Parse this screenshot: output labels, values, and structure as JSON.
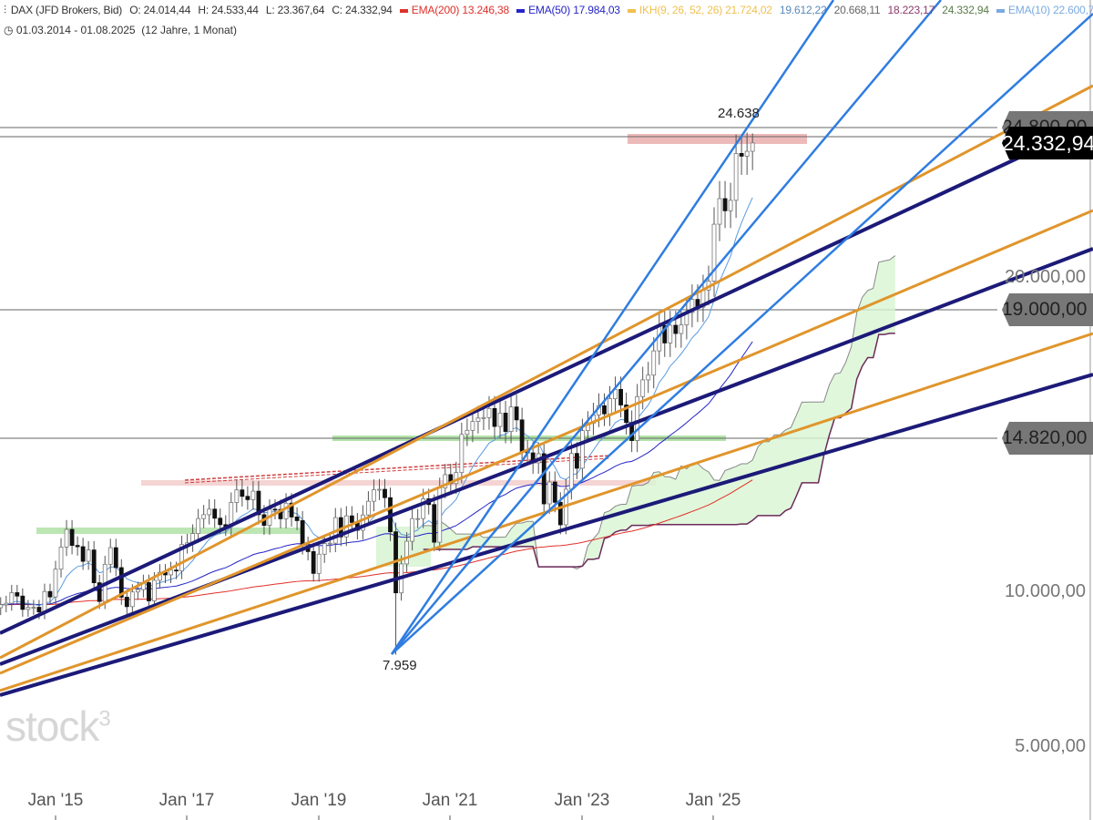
{
  "header": {
    "symbol": "DAX (JFD Brokers, Bid)",
    "open": "O: 24.014,44",
    "high": "H: 24.533,44",
    "low": "L: 23.367,64",
    "close": "C: 24.332,94",
    "ema200_label": "EMA(200)",
    "ema200_value": "13.246,38",
    "ema50_label": "EMA(50)",
    "ema50_value": "17.984,03",
    "ikh_label": "IKH(9, 26, 52, 26)",
    "ikh_v1": "21.724,02",
    "ikh_v2": "19.612,22",
    "ikh_v3": "20.668,11",
    "ikh_v4": "18.223,17",
    "ikh_v5": "24.332,94",
    "ema10_label": "EMA(10)",
    "ema10_value": "22.600,78",
    "range": "01.03.2014 - 01.08.2025",
    "range_note": "(12 Jahre, 1 Monat)"
  },
  "colors": {
    "ema200": "#e0302a",
    "ema50": "#2525c8",
    "ikh": "#f0c050",
    "ema10": "#5a9be0",
    "trend_navy": "#1c1a78",
    "trend_orange": "#e0952b",
    "trend_blue": "#2f7de1",
    "cloud": "#d8f5d2",
    "spanB": "#6b2a5a",
    "spanA": "#888888"
  },
  "logo": "stock3",
  "annotations": {
    "high": "24.638",
    "low": "7.959"
  },
  "price_tags": {
    "hidden": "24.800,00",
    "last": "24.332,94",
    "level1": "19.000,00",
    "level2": "14.820,00"
  },
  "chart_data": {
    "type": "candlestick",
    "interval": "1 Monat",
    "start": "2014-03",
    "y_scale": "linear",
    "ylim": [
      4400,
      27000
    ],
    "yticks": [
      "5.000,00",
      "10.000,00",
      "20.000,00"
    ],
    "xticks": [
      "Jan '15",
      "Jan '17",
      "Jan '19",
      "Jan '21",
      "Jan '23",
      "Jan '25"
    ],
    "high": 24638,
    "low": 7959,
    "horizontal_levels": [
      24800,
      24332.94,
      19000,
      14820
    ],
    "closes": [
      9556,
      9603,
      9943,
      9833,
      9407,
      9470,
      9474,
      9326,
      9980,
      9805,
      10694,
      11401,
      11966,
      11454,
      11413,
      10945,
      11308,
      10259,
      9660,
      10850,
      11382,
      10743,
      9798,
      9495,
      9965,
      10039,
      10263,
      9680,
      10337,
      10593,
      10511,
      10665,
      10640,
      11481,
      11535,
      11834,
      12313,
      12438,
      12615,
      12325,
      12118,
      12055,
      12829,
      13230,
      13024,
      12918,
      13189,
      12436,
      12097,
      12612,
      12605,
      12306,
      12806,
      12364,
      12247,
      11447,
      11257,
      10559,
      11173,
      11516,
      11526,
      12344,
      11727,
      12399,
      12189,
      11939,
      12428,
      12867,
      13236,
      13249,
      12982,
      11890,
      9936,
      10862,
      11587,
      12311,
      12313,
      12945,
      12761,
      11556,
      13291,
      13719,
      13433,
      13786,
      15008,
      15136,
      15421,
      15531,
      15544,
      15835,
      15261,
      15688,
      15100,
      15885,
      15471,
      14461,
      14415,
      14098,
      14388,
      12784,
      13484,
      12835,
      12114,
      13253,
      14397,
      13924,
      15128,
      15365,
      15629,
      15922,
      15664,
      16148,
      16447,
      15947,
      15387,
      14810,
      16215,
      16752,
      16904,
      17678,
      18492,
      17932,
      18498,
      18235,
      18509,
      18907,
      19325,
      19078,
      19626,
      19909,
      21732,
      22551,
      22163,
      22497,
      23997,
      23909,
      24065,
      24333
    ],
    "indicators": [
      "EMA(200)",
      "EMA(50)",
      "IKH(9, 26, 52, 26)",
      "EMA(10)"
    ]
  }
}
